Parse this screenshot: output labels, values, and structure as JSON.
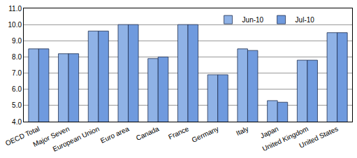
{
  "chart_data": {
    "type": "bar",
    "categories": [
      "OECD Total",
      "Major Seven",
      "European Union",
      "Euro area",
      "Canada",
      "France",
      "Germany",
      "Italy",
      "Japan",
      "United Kingdom",
      "United States"
    ],
    "series": [
      {
        "name": "Jun-10",
        "color": "#8fb2e6",
        "values": [
          8.5,
          8.2,
          9.6,
          10.0,
          7.9,
          10.0,
          6.9,
          8.5,
          5.3,
          7.8,
          9.5
        ]
      },
      {
        "name": "Jul-10",
        "color": "#6f9ade",
        "values": [
          8.5,
          8.2,
          9.6,
          10.0,
          8.0,
          10.0,
          6.9,
          8.4,
          5.2,
          7.8,
          9.5
        ]
      }
    ],
    "ylim": [
      4,
      11
    ],
    "yticks": [
      {
        "value": 4,
        "label": "4.0"
      },
      {
        "value": 5,
        "label": "5.0"
      },
      {
        "value": 6,
        "label": "6.0"
      },
      {
        "value": 7,
        "label": "7.0"
      },
      {
        "value": 8,
        "label": "8.0"
      },
      {
        "value": 9,
        "label": "9.0"
      },
      {
        "value": 10,
        "label": "10.0"
      },
      {
        "value": 11,
        "label": "11.0"
      }
    ],
    "grid": true,
    "legend": "top right"
  }
}
